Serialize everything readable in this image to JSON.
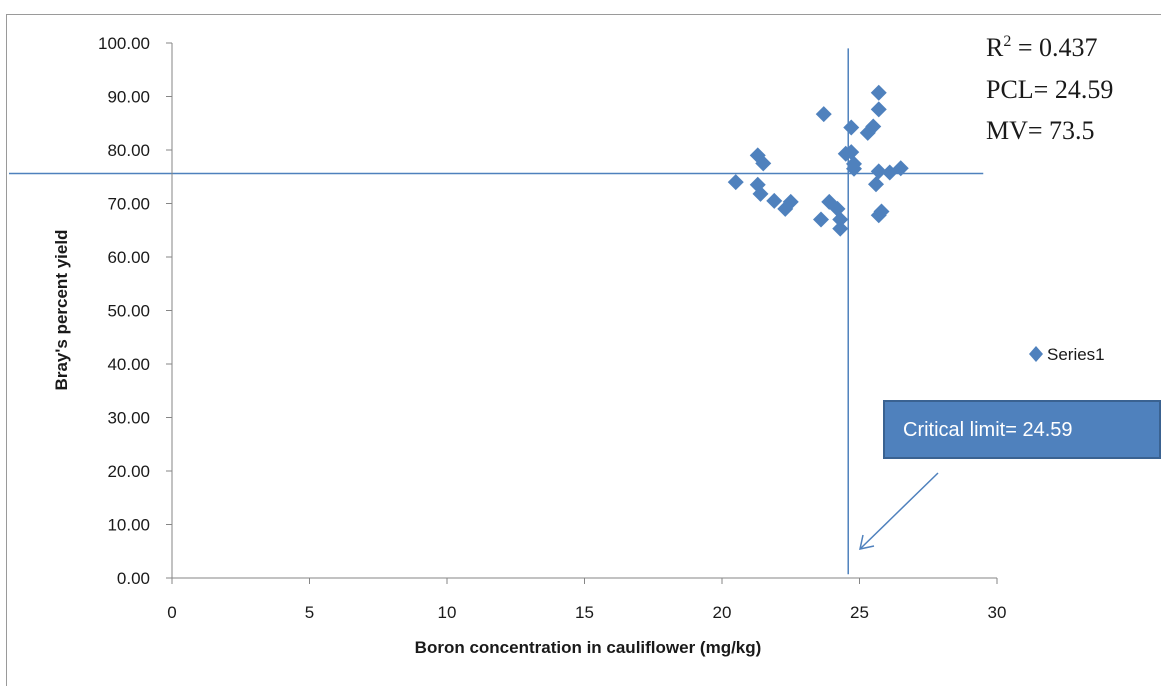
{
  "chart_data": {
    "type": "scatter",
    "title": "",
    "xlabel": "Boron concentration in cauliflower (mg/kg)",
    "ylabel": "Bray's percent yield",
    "xlim": [
      0,
      30
    ],
    "ylim": [
      0,
      100
    ],
    "x_ticks": [
      "0",
      "5",
      "10",
      "15",
      "20",
      "25",
      "30"
    ],
    "y_ticks": [
      "0.00",
      "10.00",
      "20.00",
      "30.00",
      "40.00",
      "50.00",
      "60.00",
      "70.00",
      "80.00",
      "90.00",
      "100.00"
    ],
    "grid": false,
    "legend_position": "right",
    "series": [
      {
        "name": "Series1",
        "color": "#4f81bd",
        "marker": "diamond",
        "points": [
          {
            "x": 20.5,
            "y": 74.0
          },
          {
            "x": 21.3,
            "y": 79.0
          },
          {
            "x": 21.5,
            "y": 77.5
          },
          {
            "x": 21.3,
            "y": 73.5
          },
          {
            "x": 21.4,
            "y": 71.8
          },
          {
            "x": 21.9,
            "y": 70.5
          },
          {
            "x": 22.3,
            "y": 69.0
          },
          {
            "x": 22.5,
            "y": 70.3
          },
          {
            "x": 23.7,
            "y": 86.7
          },
          {
            "x": 23.6,
            "y": 67.0
          },
          {
            "x": 23.9,
            "y": 70.3
          },
          {
            "x": 24.2,
            "y": 69.0
          },
          {
            "x": 24.3,
            "y": 67.0
          },
          {
            "x": 24.3,
            "y": 65.3
          },
          {
            "x": 24.5,
            "y": 79.3
          },
          {
            "x": 24.7,
            "y": 84.2
          },
          {
            "x": 24.7,
            "y": 79.6
          },
          {
            "x": 24.8,
            "y": 77.4
          },
          {
            "x": 24.8,
            "y": 76.5
          },
          {
            "x": 25.3,
            "y": 83.2
          },
          {
            "x": 25.5,
            "y": 84.4
          },
          {
            "x": 25.6,
            "y": 73.6
          },
          {
            "x": 25.7,
            "y": 90.7
          },
          {
            "x": 25.7,
            "y": 87.6
          },
          {
            "x": 25.7,
            "y": 76.0
          },
          {
            "x": 25.7,
            "y": 67.8
          },
          {
            "x": 25.8,
            "y": 68.5
          },
          {
            "x": 26.1,
            "y": 75.8
          },
          {
            "x": 26.5,
            "y": 76.6
          }
        ]
      }
    ],
    "reference_lines": {
      "horizontal_y": 75.6,
      "vertical_x": 24.59,
      "line_color": "#4f81bd"
    },
    "annotations": {
      "r2_prefix": "R",
      "r2_sup": "2",
      "r2_value": " = 0.437",
      "pcl": "PCL= 24.59",
      "mv": "MV= 73.5",
      "callout": "Critical limit= 24.59"
    }
  }
}
